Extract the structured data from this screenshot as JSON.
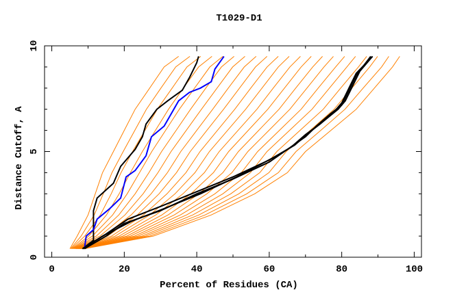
{
  "chart_data": {
    "type": "line",
    "title": "T1029-D1",
    "xlabel": "Percent of Residues (CA)",
    "ylabel": "Distance Cutoff, A",
    "xlim": [
      -2,
      102
    ],
    "ylim": [
      0,
      10
    ],
    "x_ticks": [
      0,
      20,
      40,
      60,
      80,
      100
    ],
    "x_minor_ticks": [
      10,
      30,
      50,
      70,
      90
    ],
    "y_ticks": [
      0,
      5,
      10
    ],
    "y_minor_ticks": [
      1,
      2,
      3,
      4,
      6,
      7,
      8,
      9
    ],
    "grid": false,
    "colors": {
      "other_models": "#ff8000",
      "highlight_black": "#000000",
      "highlight_blue": "#0000ff"
    },
    "orange_y_levels": [
      0.4,
      1,
      2,
      3,
      4,
      5,
      6,
      7,
      8,
      9,
      9.5
    ],
    "orange_series_x": [
      [
        5,
        7,
        10,
        12,
        14,
        17,
        20,
        23,
        27,
        31,
        35
      ],
      [
        5.2,
        8.1,
        11.7,
        14.2,
        16.6,
        19.7,
        22.9,
        26.1,
        30.1,
        34.2,
        38.1
      ],
      [
        5.4,
        9.1,
        13.4,
        16.4,
        19.1,
        22.3,
        25.7,
        29.1,
        33.2,
        37.3,
        41.1
      ],
      [
        5.6,
        10.2,
        15.1,
        18.6,
        21.7,
        25,
        28.6,
        32.2,
        36.3,
        40.5,
        44.2
      ],
      [
        5.8,
        11.2,
        16.8,
        20.8,
        24.2,
        27.6,
        31.4,
        35.2,
        39.4,
        43.6,
        47.2
      ],
      [
        6,
        12.3,
        18.5,
        23,
        26.8,
        30.3,
        34.3,
        38.3,
        42.5,
        46.8,
        50.3
      ],
      [
        6.2,
        13.3,
        20.2,
        25.2,
        29.3,
        32.9,
        37.1,
        41.3,
        45.6,
        49.9,
        53.3
      ],
      [
        6.4,
        14.4,
        21.9,
        27.4,
        31.9,
        35.6,
        40,
        44.4,
        48.7,
        53.1,
        56.4
      ],
      [
        6.6,
        15.4,
        23.6,
        29.6,
        34.4,
        38.2,
        42.8,
        47.4,
        51.8,
        56.2,
        59.4
      ],
      [
        6.8,
        16.5,
        25.3,
        31.8,
        37,
        40.9,
        45.7,
        50.5,
        54.9,
        59.4,
        62.5
      ],
      [
        7,
        17.5,
        27,
        34,
        39.5,
        43.5,
        48.5,
        53.5,
        58,
        62.5,
        65.5
      ],
      [
        7.2,
        18.6,
        28.7,
        36.2,
        42.1,
        46.2,
        51.4,
        56.6,
        61.1,
        65.7,
        68.6
      ],
      [
        7.4,
        19.6,
        30.4,
        38.4,
        44.6,
        48.8,
        54.2,
        59.6,
        64.2,
        68.8,
        71.6
      ],
      [
        7.6,
        20.7,
        32.1,
        40.6,
        47.2,
        51.5,
        57.1,
        62.7,
        67.3,
        72,
        74.7
      ],
      [
        7.8,
        21.7,
        33.8,
        42.8,
        49.7,
        54.1,
        59.9,
        65.7,
        70.4,
        75.1,
        77.7
      ],
      [
        8,
        22.8,
        35.5,
        45,
        52.3,
        56.8,
        62.8,
        68.8,
        73.5,
        78.3,
        80.8
      ],
      [
        8.2,
        23.8,
        37.2,
        47.2,
        54.8,
        59.4,
        65.6,
        71.8,
        76.6,
        81.4,
        83.8
      ],
      [
        8.4,
        24.9,
        38.9,
        49.4,
        57.4,
        62.1,
        68.5,
        74.9,
        79.7,
        84.6,
        86.9
      ],
      [
        8.6,
        25.9,
        40.6,
        51.6,
        59.9,
        64.7,
        71.3,
        77.9,
        82.8,
        87.7,
        89.9
      ],
      [
        8.8,
        27,
        42.3,
        53.8,
        62.5,
        67.4,
        74.2,
        80.9,
        85.9,
        91,
        93
      ],
      [
        9,
        28,
        44,
        56,
        65,
        70,
        77,
        84,
        89,
        94,
        96
      ]
    ],
    "highlight_series": [
      {
        "name": "black-upper",
        "color": "#000000",
        "points": [
          [
            8.5,
            0.4
          ],
          [
            11.5,
            0.8
          ],
          [
            11.5,
            2.2
          ],
          [
            12.5,
            2.8
          ],
          [
            17,
            3.5
          ],
          [
            19,
            4.3
          ],
          [
            23,
            5.1
          ],
          [
            25,
            5.7
          ],
          [
            26,
            6.3
          ],
          [
            29,
            7.0
          ],
          [
            32,
            7.4
          ],
          [
            36,
            7.9
          ],
          [
            38,
            8.5
          ],
          [
            40,
            9.2
          ],
          [
            40.5,
            9.5
          ]
        ]
      },
      {
        "name": "blue",
        "color": "#0000ff",
        "points": [
          [
            9,
            0.4
          ],
          [
            9.5,
            1.0
          ],
          [
            11.5,
            1.3
          ],
          [
            12.5,
            1.8
          ],
          [
            16,
            2.3
          ],
          [
            19,
            2.8
          ],
          [
            20.5,
            3.8
          ],
          [
            23,
            4.1
          ],
          [
            26,
            4.8
          ],
          [
            27.5,
            5.7
          ],
          [
            31,
            6.2
          ],
          [
            33,
            6.8
          ],
          [
            35,
            7.4
          ],
          [
            38,
            7.8
          ],
          [
            41,
            8.0
          ],
          [
            44,
            8.3
          ],
          [
            45,
            8.9
          ],
          [
            47.5,
            9.5
          ]
        ]
      },
      {
        "name": "black-lower-1",
        "color": "#000000",
        "points": [
          [
            8.5,
            0.4
          ],
          [
            15,
            1.1
          ],
          [
            21,
            1.8
          ],
          [
            30,
            2.4
          ],
          [
            40,
            3.1
          ],
          [
            50,
            3.8
          ],
          [
            60,
            4.6
          ],
          [
            66,
            5.2
          ],
          [
            70,
            5.8
          ],
          [
            74,
            6.3
          ],
          [
            78,
            6.9
          ],
          [
            80,
            7.3
          ],
          [
            82,
            8.0
          ],
          [
            84,
            8.7
          ],
          [
            88.5,
            9.5
          ]
        ]
      },
      {
        "name": "black-lower-2",
        "color": "#000000",
        "points": [
          [
            9,
            0.4
          ],
          [
            15,
            1.0
          ],
          [
            20,
            1.6
          ],
          [
            30,
            2.2
          ],
          [
            40,
            3.0
          ],
          [
            50,
            3.7
          ],
          [
            60,
            4.5
          ],
          [
            65,
            5.1
          ],
          [
            70,
            5.7
          ],
          [
            73,
            6.2
          ],
          [
            77,
            6.8
          ],
          [
            80,
            7.2
          ],
          [
            82,
            7.9
          ],
          [
            84,
            8.6
          ],
          [
            88,
            9.5
          ]
        ]
      },
      {
        "name": "black-lower-3",
        "color": "#000000",
        "points": [
          [
            8.5,
            0.4
          ],
          [
            14,
            1.0
          ],
          [
            22,
            1.7
          ],
          [
            31,
            2.3
          ],
          [
            41,
            3.0
          ],
          [
            51,
            3.8
          ],
          [
            61,
            4.7
          ],
          [
            67,
            5.3
          ],
          [
            71,
            5.9
          ],
          [
            74,
            6.3
          ],
          [
            79,
            7.0
          ],
          [
            81,
            7.4
          ],
          [
            83,
            8.1
          ],
          [
            85,
            8.8
          ],
          [
            88.5,
            9.5
          ]
        ]
      }
    ]
  }
}
